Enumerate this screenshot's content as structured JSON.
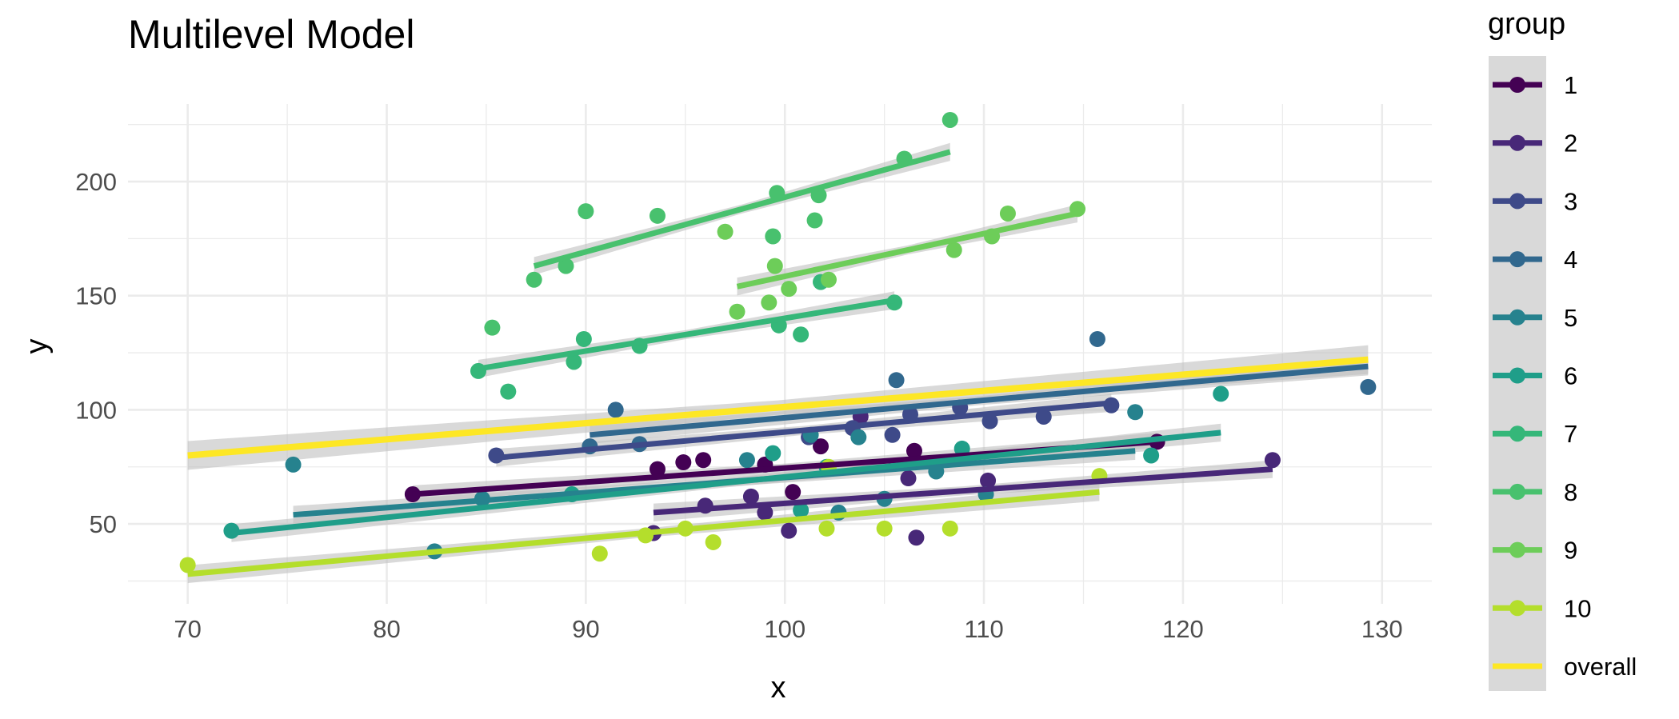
{
  "chart_data": {
    "type": "scatter",
    "title": "Multilevel Model",
    "xlabel": "x",
    "ylabel": "y",
    "xlim": [
      67,
      132.5
    ],
    "ylim": [
      15,
      241
    ],
    "x_ticks": [
      70,
      80,
      90,
      100,
      110,
      120,
      130
    ],
    "y_ticks": [
      50,
      100,
      150,
      200
    ],
    "grid": true,
    "legend_title": "group",
    "legend_position": "right",
    "colors": {
      "1": "#440154",
      "2": "#482878",
      "3": "#3E4A89",
      "4": "#31688E",
      "5": "#26828E",
      "6": "#1F9E89",
      "7": "#35B779",
      "8": "#48C16E",
      "9": "#6DCD59",
      "10": "#B4DE2C",
      "overall": "#FDE725"
    },
    "series": [
      {
        "name": "1",
        "points": [
          [
            81.3,
            63
          ],
          [
            93.6,
            74
          ],
          [
            94.9,
            77
          ],
          [
            95.9,
            78
          ],
          [
            99.0,
            76
          ],
          [
            100.4,
            64
          ],
          [
            101.8,
            84
          ],
          [
            106.5,
            82
          ],
          [
            118.7,
            86
          ]
        ],
        "fit": [
          [
            81.3,
            63
          ],
          [
            118.7,
            86
          ]
        ]
      },
      {
        "name": "2",
        "points": [
          [
            93.4,
            46
          ],
          [
            96.0,
            58
          ],
          [
            98.3,
            62
          ],
          [
            99.0,
            55
          ],
          [
            100.2,
            47
          ],
          [
            103.8,
            97
          ],
          [
            106.2,
            70
          ],
          [
            106.6,
            44
          ],
          [
            110.2,
            69
          ],
          [
            124.5,
            78
          ]
        ],
        "fit": [
          [
            93.4,
            55
          ],
          [
            124.5,
            74
          ]
        ]
      },
      {
        "name": "3",
        "points": [
          [
            85.5,
            80
          ],
          [
            101.2,
            88
          ],
          [
            103.4,
            92
          ],
          [
            105.4,
            89
          ],
          [
            106.3,
            98
          ],
          [
            108.8,
            101
          ],
          [
            110.3,
            95
          ],
          [
            113.0,
            97
          ],
          [
            116.4,
            102
          ]
        ],
        "fit": [
          [
            85.5,
            79
          ],
          [
            116.4,
            103
          ]
        ]
      },
      {
        "name": "4",
        "points": [
          [
            90.2,
            84
          ],
          [
            91.5,
            100
          ],
          [
            92.7,
            85
          ],
          [
            105.6,
            113
          ],
          [
            115.7,
            131
          ],
          [
            129.3,
            110
          ]
        ],
        "fit": [
          [
            90.2,
            89
          ],
          [
            129.3,
            119
          ]
        ]
      },
      {
        "name": "5",
        "points": [
          [
            75.3,
            76
          ],
          [
            82.4,
            38
          ],
          [
            84.8,
            61
          ],
          [
            98.1,
            78
          ],
          [
            101.3,
            89
          ],
          [
            102.7,
            55
          ],
          [
            103.7,
            88
          ],
          [
            105.0,
            61
          ],
          [
            107.6,
            73
          ],
          [
            110.1,
            63
          ],
          [
            117.6,
            99
          ]
        ],
        "fit": [
          [
            75.3,
            54
          ],
          [
            117.6,
            82
          ]
        ]
      },
      {
        "name": "6",
        "points": [
          [
            72.2,
            47
          ],
          [
            89.3,
            63
          ],
          [
            99.4,
            81
          ],
          [
            100.8,
            56
          ],
          [
            102.1,
            75
          ],
          [
            108.9,
            83
          ],
          [
            118.4,
            80
          ],
          [
            121.9,
            107
          ]
        ],
        "fit": [
          [
            72.2,
            46
          ],
          [
            121.9,
            90
          ]
        ]
      },
      {
        "name": "7",
        "points": [
          [
            84.6,
            117
          ],
          [
            86.1,
            108
          ],
          [
            89.4,
            121
          ],
          [
            89.9,
            131
          ],
          [
            92.7,
            128
          ],
          [
            99.7,
            137
          ],
          [
            100.8,
            133
          ],
          [
            101.8,
            156
          ],
          [
            105.5,
            147
          ]
        ],
        "fit": [
          [
            84.6,
            118
          ],
          [
            105.5,
            148
          ]
        ]
      },
      {
        "name": "8",
        "points": [
          [
            85.3,
            136
          ],
          [
            87.4,
            157
          ],
          [
            89.0,
            163
          ],
          [
            90.0,
            187
          ],
          [
            93.6,
            185
          ],
          [
            99.4,
            176
          ],
          [
            99.6,
            195
          ],
          [
            101.5,
            183
          ],
          [
            101.7,
            194
          ],
          [
            106.0,
            210
          ],
          [
            108.3,
            227
          ]
        ],
        "fit": [
          [
            87.4,
            163
          ],
          [
            108.3,
            213
          ]
        ]
      },
      {
        "name": "9",
        "points": [
          [
            97.0,
            178
          ],
          [
            97.6,
            143
          ],
          [
            99.2,
            147
          ],
          [
            99.5,
            163
          ],
          [
            100.2,
            153
          ],
          [
            102.2,
            157
          ],
          [
            108.5,
            170
          ],
          [
            110.4,
            176
          ],
          [
            111.2,
            186
          ],
          [
            114.7,
            188
          ]
        ],
        "fit": [
          [
            97.6,
            154
          ],
          [
            114.7,
            186
          ]
        ]
      },
      {
        "name": "10",
        "points": [
          [
            70.0,
            32
          ],
          [
            90.7,
            37
          ],
          [
            93.0,
            45
          ],
          [
            95.0,
            48
          ],
          [
            96.4,
            42
          ],
          [
            102.2,
            75
          ],
          [
            102.1,
            48
          ],
          [
            105.0,
            48
          ],
          [
            108.3,
            48
          ],
          [
            115.8,
            71
          ]
        ],
        "fit": [
          [
            70.0,
            28
          ],
          [
            115.8,
            64
          ]
        ]
      }
    ],
    "overall_fit": {
      "name": "overall",
      "line": [
        [
          70.0,
          80
        ],
        [
          129.3,
          122
        ]
      ]
    }
  }
}
